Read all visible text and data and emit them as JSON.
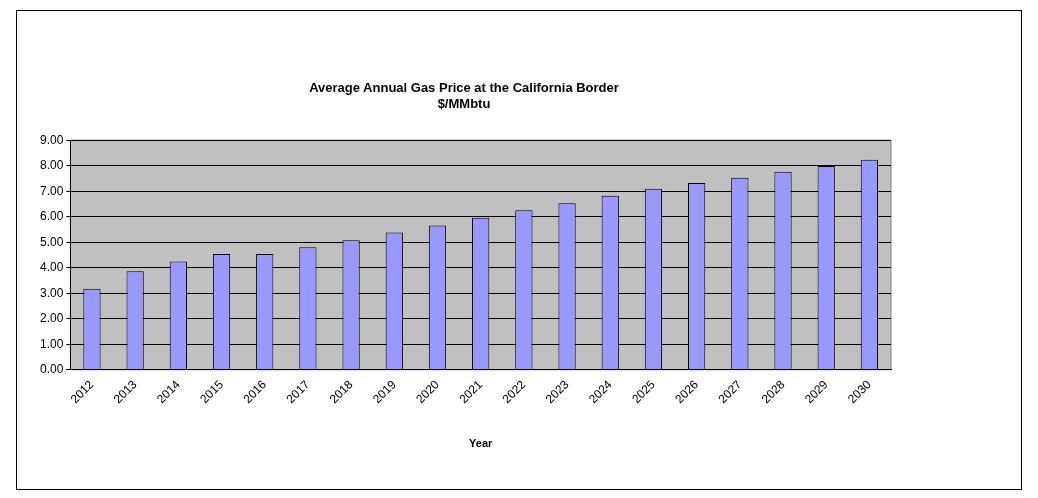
{
  "chart_data": {
    "type": "bar",
    "title": "Average Annual Gas Price at the California Border",
    "subtitle": "$/MMbtu",
    "xlabel": "Year",
    "categories": [
      "2012",
      "2013",
      "2014",
      "2015",
      "2016",
      "2017",
      "2018",
      "2019",
      "2020",
      "2021",
      "2022",
      "2023",
      "2024",
      "2025",
      "2026",
      "2027",
      "2028",
      "2029",
      "2030"
    ],
    "values": [
      3.18,
      3.86,
      4.24,
      4.54,
      4.54,
      4.8,
      5.08,
      5.38,
      5.66,
      5.96,
      6.25,
      6.53,
      6.82,
      7.1,
      7.32,
      7.53,
      7.76,
      7.99,
      8.23
    ],
    "color": "#9999ff",
    "ylim": [
      0,
      9
    ],
    "yticks": [
      {
        "value": 0,
        "label": "0.00"
      },
      {
        "value": 1,
        "label": "1.00"
      },
      {
        "value": 2,
        "label": "2.00"
      },
      {
        "value": 3,
        "label": "3.00"
      },
      {
        "value": 4,
        "label": "4.00"
      },
      {
        "value": 5,
        "label": "5.00"
      },
      {
        "value": 6,
        "label": "6.00"
      },
      {
        "value": 7,
        "label": "7.00"
      },
      {
        "value": 8,
        "label": "8.00"
      },
      {
        "value": 9,
        "label": "9.00"
      }
    ],
    "grid": "y"
  }
}
